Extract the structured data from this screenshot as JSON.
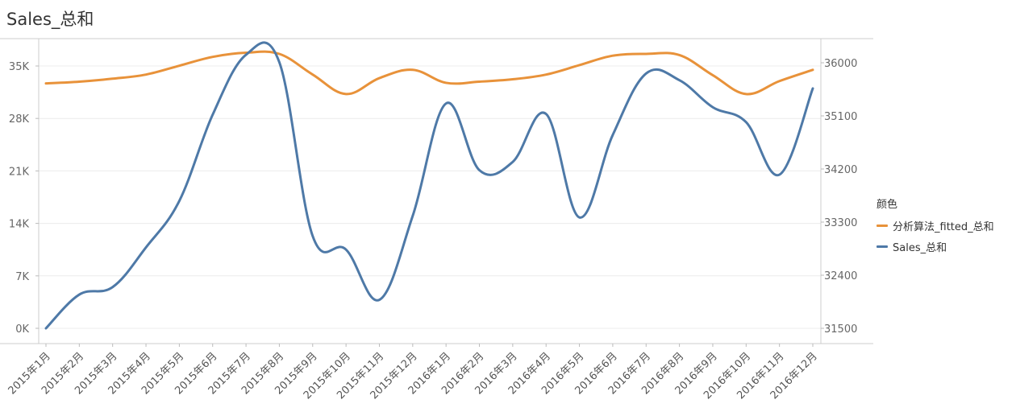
{
  "chart_data": {
    "type": "line",
    "title": "Sales_总和",
    "categories": [
      "2015年1月",
      "2015年2月",
      "2015年3月",
      "2015年4月",
      "2015年5月",
      "2015年6月",
      "2015年7月",
      "2015年8月",
      "2015年9月",
      "2015年10月",
      "2015年11月",
      "2015年12月",
      "2016年1月",
      "2016年2月",
      "2016年3月",
      "2016年4月",
      "2016年5月",
      "2016年6月",
      "2016年7月",
      "2016年8月",
      "2016年9月",
      "2016年10月",
      "2016年11月",
      "2016年12月"
    ],
    "left_axis": {
      "ylim": [
        0,
        38500
      ],
      "ticks": [
        0,
        7000,
        14000,
        21000,
        28000,
        35000
      ],
      "tick_labels": [
        "0K",
        "7K",
        "14K",
        "21K",
        "28K",
        "35K"
      ]
    },
    "right_axis": {
      "ylim": [
        31500,
        36400
      ],
      "ticks": [
        31500,
        32400,
        33300,
        34200,
        35100,
        36000
      ],
      "tick_labels": [
        "31500",
        "32400",
        "33300",
        "34200",
        "35100",
        "36000"
      ]
    },
    "series": [
      {
        "name": "分析算法_fitted_总和",
        "axis": "right",
        "color": "#e8923a",
        "values": [
          35650,
          35680,
          35730,
          35800,
          35950,
          36100,
          36170,
          36150,
          35800,
          35470,
          35740,
          35880,
          35660,
          35680,
          35720,
          35800,
          35960,
          36120,
          36150,
          36130,
          35790,
          35470,
          35690,
          35880
        ]
      },
      {
        "name": "Sales_总和",
        "axis": "left",
        "color": "#4e79a7",
        "values": [
          0,
          4500,
          5500,
          10800,
          17000,
          28500,
          36500,
          35500,
          12300,
          10500,
          3800,
          15000,
          30000,
          21100,
          22200,
          28600,
          14800,
          25800,
          34000,
          33100,
          29500,
          27500,
          20500,
          32000
        ]
      }
    ],
    "legend": {
      "title": "颜色",
      "placement": "right"
    },
    "grid": true
  }
}
